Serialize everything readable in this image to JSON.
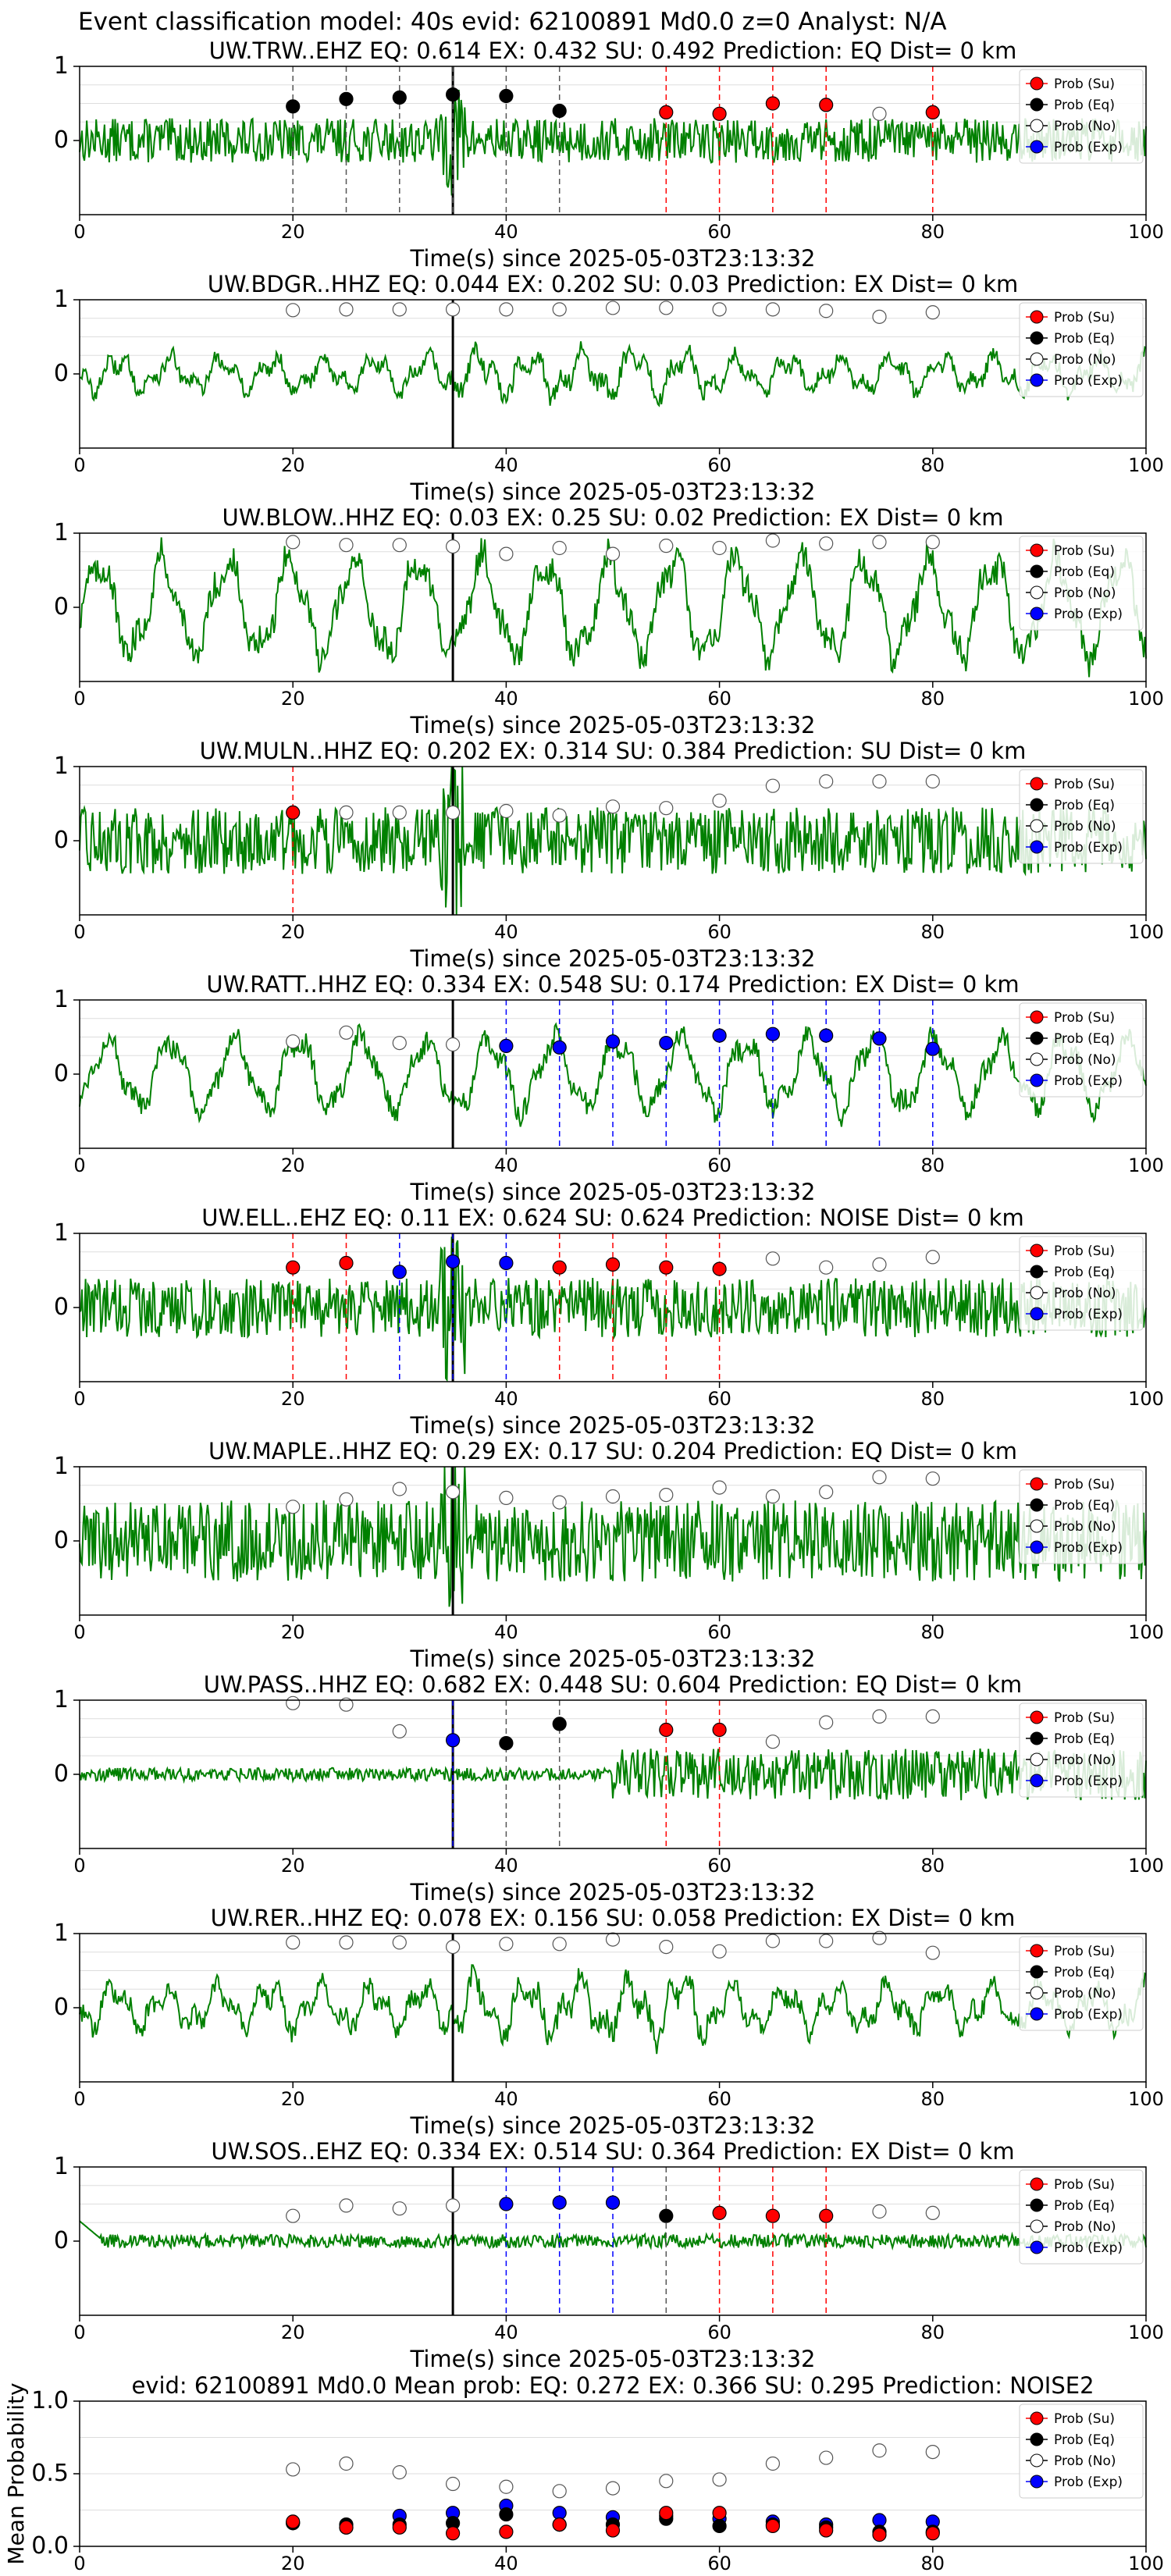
{
  "figure_title": "Event classification model: 40s evid: 62100891 Md0.0 z=0 Analyst: N/A",
  "xlabel": "Time(s) since 2025-05-03T23:13:32",
  "legend": [
    "Prob (Su)",
    "Prob (Eq)",
    "Prob (No)",
    "Prob (Exp)"
  ],
  "colors": {
    "su": "#ff0000",
    "eq": "#000000",
    "no": "#ffffff",
    "exp": "#0000ff",
    "trace": "#008000"
  },
  "chart_data": [
    {
      "type": "line",
      "title": "UW.TRW..EHZ   EQ: 0.614  EX: 0.432  SU: 0.492   Prediction: EQ    Dist= 0 km",
      "event_line": 35,
      "xlim": [
        0,
        100
      ],
      "ylim": [
        -1,
        1
      ],
      "xticks": [
        0,
        20,
        40,
        60,
        80,
        100
      ],
      "yticks": [
        0,
        1
      ],
      "trace_style": "noise",
      "trace_amp": 0.3,
      "points": [
        {
          "x": 20,
          "y": 0.46,
          "cls": "eq"
        },
        {
          "x": 25,
          "y": 0.56,
          "cls": "eq"
        },
        {
          "x": 30,
          "y": 0.58,
          "cls": "eq"
        },
        {
          "x": 35,
          "y": 0.62,
          "cls": "eq"
        },
        {
          "x": 40,
          "y": 0.6,
          "cls": "eq"
        },
        {
          "x": 45,
          "y": 0.4,
          "cls": "eq"
        },
        {
          "x": 55,
          "y": 0.38,
          "cls": "su"
        },
        {
          "x": 60,
          "y": 0.36,
          "cls": "su"
        },
        {
          "x": 65,
          "y": 0.5,
          "cls": "su"
        },
        {
          "x": 70,
          "y": 0.48,
          "cls": "su"
        },
        {
          "x": 75,
          "y": 0.36,
          "cls": "no"
        },
        {
          "x": 80,
          "y": 0.38,
          "cls": "su"
        }
      ]
    },
    {
      "type": "line",
      "title": "UW.BDGR..HHZ   EQ: 0.044  EX: 0.202  SU: 0.03   Prediction: EX    Dist= 0 km",
      "event_line": 35,
      "xlim": [
        0,
        100
      ],
      "ylim": [
        -1,
        1
      ],
      "xticks": [
        0,
        20,
        40,
        60,
        80,
        100
      ],
      "yticks": [
        0,
        1
      ],
      "trace_style": "wave",
      "trace_amp": 0.35,
      "points": [
        {
          "x": 20,
          "y": 0.86,
          "cls": "no"
        },
        {
          "x": 25,
          "y": 0.87,
          "cls": "no"
        },
        {
          "x": 30,
          "y": 0.87,
          "cls": "no"
        },
        {
          "x": 35,
          "y": 0.87,
          "cls": "no"
        },
        {
          "x": 40,
          "y": 0.87,
          "cls": "no"
        },
        {
          "x": 45,
          "y": 0.87,
          "cls": "no"
        },
        {
          "x": 50,
          "y": 0.89,
          "cls": "no"
        },
        {
          "x": 55,
          "y": 0.89,
          "cls": "no"
        },
        {
          "x": 60,
          "y": 0.87,
          "cls": "no"
        },
        {
          "x": 65,
          "y": 0.87,
          "cls": "no"
        },
        {
          "x": 70,
          "y": 0.85,
          "cls": "no"
        },
        {
          "x": 75,
          "y": 0.77,
          "cls": "no"
        },
        {
          "x": 80,
          "y": 0.83,
          "cls": "no"
        }
      ]
    },
    {
      "type": "line",
      "title": "UW.BLOW..HHZ   EQ: 0.03   EX: 0.25   SU: 0.02   Prediction: EX    Dist= 0 km",
      "event_line": 35,
      "xlim": [
        0,
        100
      ],
      "ylim": [
        -1,
        1
      ],
      "xticks": [
        0,
        20,
        40,
        60,
        80,
        100
      ],
      "yticks": [
        0,
        1
      ],
      "trace_style": "bigwave",
      "trace_amp": 0.8,
      "points": [
        {
          "x": 20,
          "y": 0.88,
          "cls": "no"
        },
        {
          "x": 25,
          "y": 0.84,
          "cls": "no"
        },
        {
          "x": 30,
          "y": 0.84,
          "cls": "no"
        },
        {
          "x": 35,
          "y": 0.82,
          "cls": "no"
        },
        {
          "x": 40,
          "y": 0.72,
          "cls": "no"
        },
        {
          "x": 45,
          "y": 0.8,
          "cls": "no"
        },
        {
          "x": 50,
          "y": 0.72,
          "cls": "no"
        },
        {
          "x": 55,
          "y": 0.83,
          "cls": "no"
        },
        {
          "x": 60,
          "y": 0.8,
          "cls": "no"
        },
        {
          "x": 65,
          "y": 0.9,
          "cls": "no"
        },
        {
          "x": 70,
          "y": 0.86,
          "cls": "no"
        },
        {
          "x": 75,
          "y": 0.88,
          "cls": "no"
        },
        {
          "x": 80,
          "y": 0.88,
          "cls": "no"
        }
      ]
    },
    {
      "type": "line",
      "title": "UW.MULN..HHZ   EQ: 0.202  EX: 0.314  SU: 0.384   Prediction: SU    Dist= 0 km",
      "event_line": 35,
      "xlim": [
        0,
        100
      ],
      "ylim": [
        -1,
        1
      ],
      "xticks": [
        0,
        20,
        40,
        60,
        80,
        100
      ],
      "yticks": [
        0,
        1
      ],
      "trace_style": "noise",
      "trace_amp": 0.45,
      "points": [
        {
          "x": 20,
          "y": 0.38,
          "cls": "su"
        },
        {
          "x": 25,
          "y": 0.38,
          "cls": "no"
        },
        {
          "x": 30,
          "y": 0.38,
          "cls": "no"
        },
        {
          "x": 35,
          "y": 0.38,
          "cls": "no"
        },
        {
          "x": 40,
          "y": 0.4,
          "cls": "no"
        },
        {
          "x": 45,
          "y": 0.34,
          "cls": "no"
        },
        {
          "x": 50,
          "y": 0.46,
          "cls": "no"
        },
        {
          "x": 55,
          "y": 0.44,
          "cls": "no"
        },
        {
          "x": 60,
          "y": 0.54,
          "cls": "no"
        },
        {
          "x": 65,
          "y": 0.74,
          "cls": "no"
        },
        {
          "x": 70,
          "y": 0.8,
          "cls": "no"
        },
        {
          "x": 75,
          "y": 0.8,
          "cls": "no"
        },
        {
          "x": 80,
          "y": 0.8,
          "cls": "no"
        }
      ]
    },
    {
      "type": "line",
      "title": "UW.RATT..HHZ   EQ: 0.334  EX: 0.548  SU: 0.174   Prediction: EX    Dist= 0 km",
      "event_line": 35,
      "xlim": [
        0,
        100
      ],
      "ylim": [
        -1,
        1
      ],
      "xticks": [
        0,
        20,
        40,
        60,
        80,
        100
      ],
      "yticks": [
        0,
        1
      ],
      "trace_style": "bigwave",
      "trace_amp": 0.6,
      "points": [
        {
          "x": 20,
          "y": 0.44,
          "cls": "no"
        },
        {
          "x": 25,
          "y": 0.56,
          "cls": "no"
        },
        {
          "x": 30,
          "y": 0.42,
          "cls": "no"
        },
        {
          "x": 35,
          "y": 0.4,
          "cls": "no"
        },
        {
          "x": 40,
          "y": 0.38,
          "cls": "exp"
        },
        {
          "x": 45,
          "y": 0.36,
          "cls": "exp"
        },
        {
          "x": 50,
          "y": 0.44,
          "cls": "exp"
        },
        {
          "x": 55,
          "y": 0.42,
          "cls": "exp"
        },
        {
          "x": 60,
          "y": 0.52,
          "cls": "exp"
        },
        {
          "x": 65,
          "y": 0.54,
          "cls": "exp"
        },
        {
          "x": 70,
          "y": 0.52,
          "cls": "exp"
        },
        {
          "x": 75,
          "y": 0.48,
          "cls": "exp"
        },
        {
          "x": 80,
          "y": 0.34,
          "cls": "exp"
        }
      ]
    },
    {
      "type": "line",
      "title": "UW.ELL..EHZ   EQ: 0.11   EX: 0.624  SU: 0.624   Prediction: NOISE    Dist= 0 km",
      "event_line": 35,
      "xlim": [
        0,
        100
      ],
      "ylim": [
        -1,
        1
      ],
      "xticks": [
        0,
        20,
        40,
        60,
        80,
        100
      ],
      "yticks": [
        0,
        1
      ],
      "trace_style": "noise",
      "trace_amp": 0.4,
      "points": [
        {
          "x": 20,
          "y": 0.54,
          "cls": "su"
        },
        {
          "x": 25,
          "y": 0.6,
          "cls": "su"
        },
        {
          "x": 30,
          "y": 0.48,
          "cls": "exp"
        },
        {
          "x": 35,
          "y": 0.62,
          "cls": "exp"
        },
        {
          "x": 40,
          "y": 0.6,
          "cls": "exp"
        },
        {
          "x": 45,
          "y": 0.54,
          "cls": "su"
        },
        {
          "x": 50,
          "y": 0.58,
          "cls": "su"
        },
        {
          "x": 55,
          "y": 0.54,
          "cls": "su"
        },
        {
          "x": 60,
          "y": 0.52,
          "cls": "su"
        },
        {
          "x": 65,
          "y": 0.66,
          "cls": "no"
        },
        {
          "x": 70,
          "y": 0.54,
          "cls": "no"
        },
        {
          "x": 75,
          "y": 0.58,
          "cls": "no"
        },
        {
          "x": 80,
          "y": 0.68,
          "cls": "no"
        }
      ]
    },
    {
      "type": "line",
      "title": "UW.MAPLE..HHZ   EQ: 0.29   EX: 0.17   SU: 0.204   Prediction: EQ    Dist= 0 km",
      "event_line": 35,
      "xlim": [
        0,
        100
      ],
      "ylim": [
        -1,
        1
      ],
      "xticks": [
        0,
        20,
        40,
        60,
        80,
        100
      ],
      "yticks": [
        0,
        1
      ],
      "trace_style": "noise",
      "trace_amp": 0.55,
      "points": [
        {
          "x": 20,
          "y": 0.46,
          "cls": "no"
        },
        {
          "x": 25,
          "y": 0.56,
          "cls": "no"
        },
        {
          "x": 30,
          "y": 0.7,
          "cls": "no"
        },
        {
          "x": 35,
          "y": 0.66,
          "cls": "no"
        },
        {
          "x": 40,
          "y": 0.58,
          "cls": "no"
        },
        {
          "x": 45,
          "y": 0.52,
          "cls": "no"
        },
        {
          "x": 50,
          "y": 0.6,
          "cls": "no"
        },
        {
          "x": 55,
          "y": 0.62,
          "cls": "no"
        },
        {
          "x": 60,
          "y": 0.72,
          "cls": "no"
        },
        {
          "x": 65,
          "y": 0.6,
          "cls": "no"
        },
        {
          "x": 70,
          "y": 0.66,
          "cls": "no"
        },
        {
          "x": 75,
          "y": 0.86,
          "cls": "no"
        },
        {
          "x": 80,
          "y": 0.84,
          "cls": "no"
        }
      ]
    },
    {
      "type": "line",
      "title": "UW.PASS..HHZ   EQ: 0.682  EX: 0.448  SU: 0.604   Prediction: EQ    Dist= 0 km",
      "event_line": 35,
      "xlim": [
        0,
        100
      ],
      "ylim": [
        -1,
        1
      ],
      "xticks": [
        0,
        20,
        40,
        60,
        80,
        100
      ],
      "yticks": [
        0,
        1
      ],
      "trace_style": "pass",
      "trace_amp": 0.35,
      "points": [
        {
          "x": 20,
          "y": 0.96,
          "cls": "no"
        },
        {
          "x": 25,
          "y": 0.94,
          "cls": "no"
        },
        {
          "x": 30,
          "y": 0.58,
          "cls": "no"
        },
        {
          "x": 35,
          "y": 0.46,
          "cls": "exp"
        },
        {
          "x": 40,
          "y": 0.42,
          "cls": "eq"
        },
        {
          "x": 45,
          "y": 0.68,
          "cls": "eq"
        },
        {
          "x": 55,
          "y": 0.6,
          "cls": "su"
        },
        {
          "x": 60,
          "y": 0.6,
          "cls": "su"
        },
        {
          "x": 65,
          "y": 0.44,
          "cls": "no"
        },
        {
          "x": 70,
          "y": 0.7,
          "cls": "no"
        },
        {
          "x": 75,
          "y": 0.78,
          "cls": "no"
        },
        {
          "x": 80,
          "y": 0.78,
          "cls": "no"
        }
      ]
    },
    {
      "type": "line",
      "title": "UW.RER..HHZ   EQ: 0.078  EX: 0.156  SU: 0.058   Prediction: EX    Dist= 0 km",
      "event_line": 35,
      "xlim": [
        0,
        100
      ],
      "ylim": [
        -1,
        1
      ],
      "xticks": [
        0,
        20,
        40,
        60,
        80,
        100
      ],
      "yticks": [
        0,
        1
      ],
      "trace_style": "wave",
      "trace_amp": 0.45,
      "points": [
        {
          "x": 20,
          "y": 0.88,
          "cls": "no"
        },
        {
          "x": 25,
          "y": 0.88,
          "cls": "no"
        },
        {
          "x": 30,
          "y": 0.88,
          "cls": "no"
        },
        {
          "x": 35,
          "y": 0.82,
          "cls": "no"
        },
        {
          "x": 40,
          "y": 0.86,
          "cls": "no"
        },
        {
          "x": 45,
          "y": 0.86,
          "cls": "no"
        },
        {
          "x": 50,
          "y": 0.92,
          "cls": "no"
        },
        {
          "x": 55,
          "y": 0.82,
          "cls": "no"
        },
        {
          "x": 60,
          "y": 0.76,
          "cls": "no"
        },
        {
          "x": 65,
          "y": 0.9,
          "cls": "no"
        },
        {
          "x": 70,
          "y": 0.9,
          "cls": "no"
        },
        {
          "x": 75,
          "y": 0.94,
          "cls": "no"
        },
        {
          "x": 80,
          "y": 0.74,
          "cls": "no"
        }
      ]
    },
    {
      "type": "line",
      "title": "UW.SOS..EHZ   EQ: 0.334  EX: 0.514  SU: 0.364   Prediction: EX    Dist= 0 km",
      "event_line": 35,
      "xlim": [
        0,
        100
      ],
      "ylim": [
        -1,
        1
      ],
      "xticks": [
        0,
        20,
        40,
        60,
        80,
        100
      ],
      "yticks": [
        0,
        1
      ],
      "trace_style": "sos",
      "trace_amp": 0.15,
      "points": [
        {
          "x": 20,
          "y": 0.34,
          "cls": "no"
        },
        {
          "x": 25,
          "y": 0.48,
          "cls": "no"
        },
        {
          "x": 30,
          "y": 0.44,
          "cls": "no"
        },
        {
          "x": 35,
          "y": 0.48,
          "cls": "no"
        },
        {
          "x": 40,
          "y": 0.5,
          "cls": "exp"
        },
        {
          "x": 45,
          "y": 0.52,
          "cls": "exp"
        },
        {
          "x": 50,
          "y": 0.52,
          "cls": "exp"
        },
        {
          "x": 55,
          "y": 0.34,
          "cls": "eq"
        },
        {
          "x": 60,
          "y": 0.38,
          "cls": "su"
        },
        {
          "x": 65,
          "y": 0.34,
          "cls": "su"
        },
        {
          "x": 70,
          "y": 0.34,
          "cls": "su"
        },
        {
          "x": 75,
          "y": 0.4,
          "cls": "no"
        },
        {
          "x": 80,
          "y": 0.38,
          "cls": "no"
        }
      ]
    },
    {
      "type": "scatter",
      "title": "evid: 62100891  Md0.0   Mean prob:   EQ: 0.272  EX: 0.366  SU: 0.295   Prediction: NOISE2",
      "ylabel": "Mean Probability",
      "xlim": [
        0,
        100
      ],
      "ylim": [
        0,
        1
      ],
      "xticks": [
        0,
        20,
        40,
        60,
        80,
        100
      ],
      "yticks": [
        0.0,
        0.5,
        1.0
      ],
      "x": [
        20,
        25,
        30,
        35,
        40,
        45,
        50,
        55,
        60,
        65,
        70,
        75,
        80
      ],
      "series": [
        {
          "name": "Prob (No)",
          "cls": "no",
          "values": [
            0.53,
            0.57,
            0.51,
            0.43,
            0.41,
            0.38,
            0.4,
            0.45,
            0.46,
            0.57,
            0.61,
            0.66,
            0.65
          ]
        },
        {
          "name": "Prob (Exp)",
          "cls": "exp",
          "values": [
            0.16,
            0.13,
            0.21,
            0.23,
            0.28,
            0.23,
            0.2,
            0.21,
            0.19,
            0.17,
            0.15,
            0.18,
            0.17
          ]
        },
        {
          "name": "Prob (Eq)",
          "cls": "eq",
          "values": [
            0.16,
            0.15,
            0.15,
            0.16,
            0.22,
            0.15,
            0.15,
            0.19,
            0.14,
            0.15,
            0.13,
            0.1,
            0.1
          ]
        },
        {
          "name": "Prob (Su)",
          "cls": "su",
          "values": [
            0.17,
            0.13,
            0.13,
            0.09,
            0.1,
            0.15,
            0.11,
            0.23,
            0.23,
            0.14,
            0.11,
            0.08,
            0.09
          ]
        }
      ]
    }
  ]
}
